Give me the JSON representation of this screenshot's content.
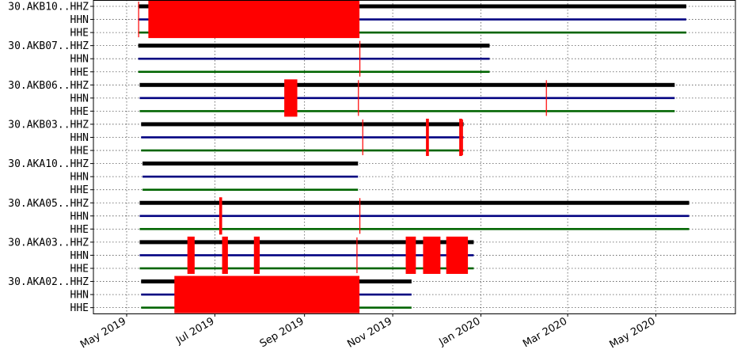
{
  "chart_data": {
    "type": "timeline",
    "title": "",
    "xlabel": "",
    "ylabel": "",
    "xlim": [
      "2019-04-08",
      "2020-06-25"
    ],
    "grid": true,
    "x_ticks": [
      {
        "date": "2019-05-01",
        "label": "May 2019"
      },
      {
        "date": "2019-07-01",
        "label": "Jul 2019"
      },
      {
        "date": "2019-09-01",
        "label": "Sep 2019"
      },
      {
        "date": "2019-11-01",
        "label": "Nov 2019"
      },
      {
        "date": "2020-01-01",
        "label": "Jan 2020"
      },
      {
        "date": "2020-03-01",
        "label": "Mar 2020"
      },
      {
        "date": "2020-05-01",
        "label": "May 2020"
      }
    ],
    "channel_colors": {
      "HHZ": "#000000",
      "HHN": "#000080",
      "HHE": "#006400"
    },
    "gap_color": "#ff0000",
    "stations": [
      {
        "label": "30.AKB10..HHZ",
        "channel_labels": [
          "HHN",
          "HHE"
        ],
        "channels": [
          "HHZ",
          "HHN",
          "HHE"
        ],
        "start": "2019-05-09",
        "end": "2020-05-21",
        "gaps": [
          [
            "2019-05-16",
            "2019-10-08"
          ]
        ],
        "marks": [
          "2019-05-09"
        ]
      },
      {
        "label": "30.AKB07..HHZ",
        "channel_labels": [
          "HHN",
          "HHE"
        ],
        "channels": [
          "HHZ",
          "HHN",
          "HHE"
        ],
        "start": "2019-05-09",
        "end": "2020-01-06",
        "gaps": [],
        "marks": [
          "2019-10-09"
        ]
      },
      {
        "label": "30.AKB06..HHZ",
        "channel_labels": [
          "HHN",
          "HHE"
        ],
        "channels": [
          "HHZ",
          "HHN",
          "HHE"
        ],
        "start": "2019-05-10",
        "end": "2020-05-13",
        "gaps": [
          [
            "2019-08-18",
            "2019-08-26"
          ]
        ],
        "marks": [
          "2019-10-08",
          "2020-02-15"
        ]
      },
      {
        "label": "30.AKB03..HHZ",
        "channel_labels": [
          "HHN",
          "HHE"
        ],
        "channels": [
          "HHZ",
          "HHN",
          "HHE"
        ],
        "start": "2019-05-11",
        "end": "2019-12-19",
        "gaps": [
          [
            "2019-11-24",
            "2019-11-25"
          ],
          [
            "2019-12-17",
            "2019-12-18"
          ]
        ],
        "marks": [
          "2019-10-11",
          "2019-12-19"
        ]
      },
      {
        "label": "30.AKA10..HHZ",
        "channel_labels": [
          "HHN",
          "HHE"
        ],
        "channels": [
          "HHZ",
          "HHN",
          "HHE"
        ],
        "start": "2019-05-12",
        "end": "2019-10-07",
        "gaps": [],
        "marks": []
      },
      {
        "label": "30.AKA05..HHZ",
        "channel_labels": [
          "HHN",
          "HHE"
        ],
        "channels": [
          "HHZ",
          "HHN",
          "HHE"
        ],
        "start": "2019-05-10",
        "end": "2020-05-23",
        "gaps": [
          [
            "2019-07-04",
            "2019-07-05"
          ]
        ],
        "marks": [
          "2019-10-09"
        ]
      },
      {
        "label": "30.AKA03..HHZ",
        "channel_labels": [
          "HHN",
          "HHE"
        ],
        "channels": [
          "HHZ",
          "HHN",
          "HHE"
        ],
        "start": "2019-05-10",
        "end": "2019-12-26",
        "gaps": [
          [
            "2019-06-12",
            "2019-06-16"
          ],
          [
            "2019-07-06",
            "2019-07-09"
          ],
          [
            "2019-07-28",
            "2019-07-31"
          ],
          [
            "2019-11-10",
            "2019-11-16"
          ],
          [
            "2019-11-22",
            "2019-12-03"
          ],
          [
            "2019-12-08",
            "2019-12-22"
          ]
        ],
        "marks": [
          "2019-10-07"
        ]
      },
      {
        "label": "30.AKA02..HHZ",
        "channel_labels": [
          "HHN",
          "HHE"
        ],
        "channels": [
          "HHZ",
          "HHN",
          "HHE"
        ],
        "start": "2019-05-11",
        "end": "2019-11-13",
        "gaps": [
          [
            "2019-06-03",
            "2019-10-08"
          ]
        ],
        "marks": []
      }
    ]
  }
}
